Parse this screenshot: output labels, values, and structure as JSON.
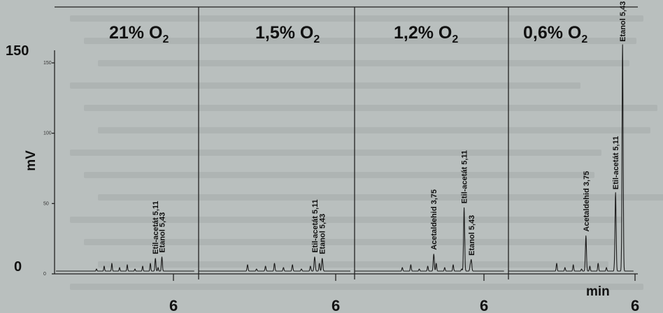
{
  "chart_data": {
    "type": "line",
    "title": "",
    "xlabel": "min",
    "ylabel": "mV",
    "ylim": [
      0,
      150
    ],
    "y_ticks_major": [
      "150",
      "0"
    ],
    "y_ticks_minor": [
      "150",
      "100",
      "50",
      "0"
    ],
    "panels": [
      {
        "title_main": "21% O",
        "title_sub": "2",
        "x_tick": "6",
        "peaks": [
          {
            "label": "Etil-acetát 5,11",
            "t": 5.11,
            "mv": 9
          },
          {
            "label": "Etanol 5,43",
            "t": 5.43,
            "mv": 10
          }
        ]
      },
      {
        "title_main": "1,5% O",
        "title_sub": "2",
        "x_tick": "6",
        "peaks": [
          {
            "label": "Etil-acetát 5,11",
            "t": 5.11,
            "mv": 10
          },
          {
            "label": "Etanol 5,43",
            "t": 5.43,
            "mv": 9
          }
        ]
      },
      {
        "title_main": "1,2% O",
        "title_sub": "2",
        "x_tick": "6",
        "peaks": [
          {
            "label": "Acetaldehid 3,75",
            "t": 3.75,
            "mv": 12
          },
          {
            "label": "Etil-acetát 5,11",
            "t": 5.11,
            "mv": 45
          },
          {
            "label": "Etanol 5,43",
            "t": 5.43,
            "mv": 8
          }
        ]
      },
      {
        "title_main": "0,6% O",
        "title_sub": "2",
        "x_tick": "6",
        "x_unit": "min",
        "peaks": [
          {
            "label": "Acetaldehid 3,75",
            "t": 3.75,
            "mv": 25
          },
          {
            "label": "Etil-acetát 5,11",
            "t": 5.11,
            "mv": 55
          },
          {
            "label": "Etanol 5,43",
            "t": 5.43,
            "mv": 160
          }
        ]
      }
    ]
  }
}
